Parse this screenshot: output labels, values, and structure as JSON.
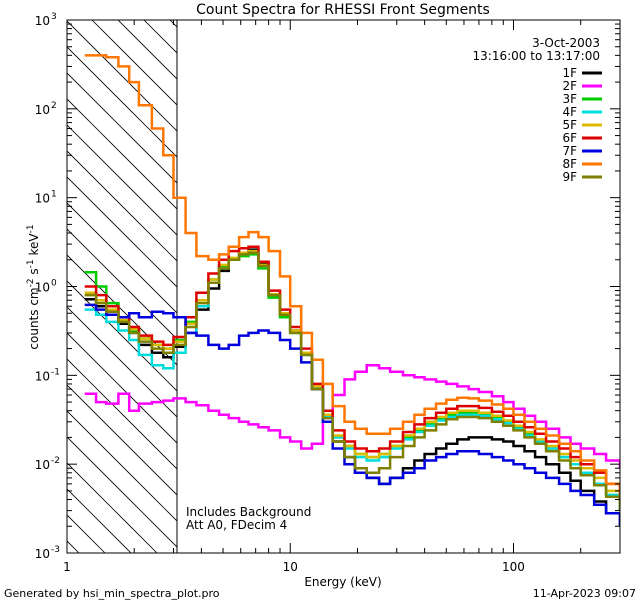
{
  "chart_data": {
    "type": "line",
    "title": "Count Spectra for RHESSI Front Segments",
    "xlabel": "Energy (keV)",
    "ylabel_parts": [
      "counts cm",
      "-2",
      " s",
      "-1",
      " keV",
      "-1"
    ],
    "x_scale": "log",
    "y_scale": "log",
    "xlim": [
      1,
      300
    ],
    "ylim": [
      0.001,
      1000
    ],
    "x_ticks": [
      {
        "value": 1,
        "label": "1"
      },
      {
        "value": 10,
        "label": "10"
      },
      {
        "value": 100,
        "label": "100"
      }
    ],
    "y_ticks": [
      {
        "value": 0.001,
        "base": "10",
        "exp": "-3"
      },
      {
        "value": 0.01,
        "base": "10",
        "exp": "-2"
      },
      {
        "value": 0.1,
        "base": "10",
        "exp": "-1"
      },
      {
        "value": 1,
        "base": "10",
        "exp": "0"
      },
      {
        "value": 10,
        "base": "10",
        "exp": "1"
      },
      {
        "value": 100,
        "base": "10",
        "exp": "2"
      },
      {
        "value": 1000,
        "base": "10",
        "exp": "3"
      }
    ],
    "hatched_region": {
      "x_from": 1,
      "x_to": 3
    },
    "date": "3-Oct-2003",
    "time_range": "13:16:00 to 13:17:00",
    "annotations": [
      "Includes Background",
      "Att A0, FDecim 4"
    ],
    "series": [
      {
        "name": "1F",
        "color": "#000000",
        "x": [
          1.2,
          1.35,
          1.5,
          1.7,
          1.9,
          2.1,
          2.4,
          2.7,
          3.0,
          3.4,
          3.8,
          4.3,
          4.8,
          5.3,
          5.9,
          6.5,
          7.2,
          8.0,
          9.0,
          10.0,
          11.2,
          12.5,
          14.0,
          15.5,
          17.5,
          19.5,
          22.0,
          25.0,
          28.0,
          32.0,
          36.0,
          40.0,
          45.0,
          50.0,
          56.0,
          63.0,
          70.0,
          80.0,
          90.0,
          100.0,
          112.0,
          125.0,
          140.0,
          160.0,
          180.0,
          200.0,
          230.0,
          260.0,
          300.0
        ],
        "y": [
          0.72,
          0.6,
          0.48,
          0.38,
          0.3,
          0.22,
          0.18,
          0.16,
          0.21,
          0.3,
          0.55,
          0.95,
          1.5,
          2.0,
          2.4,
          2.6,
          1.8,
          0.8,
          0.5,
          0.32,
          0.18,
          0.07,
          0.035,
          0.018,
          0.012,
          0.008,
          0.007,
          0.006,
          0.007,
          0.009,
          0.011,
          0.013,
          0.015,
          0.017,
          0.019,
          0.02,
          0.02,
          0.019,
          0.018,
          0.016,
          0.014,
          0.012,
          0.01,
          0.008,
          0.0065,
          0.005,
          0.0038,
          0.0028,
          0.002
        ]
      },
      {
        "name": "2F",
        "color": "#ff00ff",
        "x": [
          1.2,
          1.35,
          1.5,
          1.7,
          1.9,
          2.1,
          2.4,
          2.7,
          3.0,
          3.4,
          3.8,
          4.3,
          4.8,
          5.3,
          5.9,
          6.5,
          7.2,
          8.0,
          9.0,
          10.0,
          11.2,
          12.5,
          14.0,
          15.5,
          17.5,
          19.5,
          22.0,
          25.0,
          28.0,
          32.0,
          36.0,
          40.0,
          45.0,
          50.0,
          56.0,
          63.0,
          70.0,
          80.0,
          90.0,
          100.0,
          112.0,
          125.0,
          140.0,
          160.0,
          180.0,
          200.0,
          230.0,
          260.0,
          300.0
        ],
        "y": [
          0.062,
          0.05,
          0.048,
          0.062,
          0.04,
          0.048,
          0.05,
          0.052,
          0.055,
          0.05,
          0.046,
          0.04,
          0.036,
          0.033,
          0.03,
          0.028,
          0.026,
          0.024,
          0.02,
          0.018,
          0.015,
          0.017,
          0.03,
          0.06,
          0.09,
          0.11,
          0.13,
          0.12,
          0.11,
          0.1,
          0.095,
          0.09,
          0.085,
          0.08,
          0.075,
          0.07,
          0.065,
          0.058,
          0.05,
          0.042,
          0.035,
          0.03,
          0.025,
          0.02,
          0.017,
          0.015,
          0.013,
          0.011,
          0.009
        ]
      },
      {
        "name": "3F",
        "color": "#00cc00",
        "x": [
          1.2,
          1.35,
          1.5,
          1.7,
          1.9,
          2.1,
          2.4,
          2.7,
          3.0,
          3.4,
          3.8,
          4.3,
          4.8,
          5.3,
          5.9,
          6.5,
          7.2,
          8.0,
          9.0,
          10.0,
          11.2,
          12.5,
          14.0,
          15.5,
          17.5,
          19.5,
          22.0,
          25.0,
          28.0,
          32.0,
          36.0,
          40.0,
          45.0,
          50.0,
          56.0,
          63.0,
          70.0,
          80.0,
          90.0,
          100.0,
          112.0,
          125.0,
          140.0,
          160.0,
          180.0,
          200.0,
          230.0,
          260.0,
          300.0
        ],
        "y": [
          1.45,
          1.0,
          0.65,
          0.45,
          0.32,
          0.26,
          0.22,
          0.2,
          0.25,
          0.4,
          0.7,
          1.2,
          1.7,
          2.0,
          2.2,
          2.3,
          1.6,
          0.75,
          0.45,
          0.3,
          0.17,
          0.07,
          0.03,
          0.02,
          0.016,
          0.013,
          0.012,
          0.013,
          0.016,
          0.02,
          0.024,
          0.028,
          0.032,
          0.036,
          0.038,
          0.038,
          0.036,
          0.033,
          0.03,
          0.026,
          0.022,
          0.018,
          0.015,
          0.012,
          0.01,
          0.008,
          0.006,
          0.0045,
          0.003
        ]
      },
      {
        "name": "4F",
        "color": "#00dddd",
        "x": [
          1.2,
          1.35,
          1.5,
          1.7,
          1.9,
          2.1,
          2.4,
          2.7,
          3.0,
          3.4,
          3.8,
          4.3,
          4.8,
          5.3,
          5.9,
          6.5,
          7.2,
          8.0,
          9.0,
          10.0,
          11.2,
          12.5,
          14.0,
          15.5,
          17.5,
          19.5,
          22.0,
          25.0,
          28.0,
          32.0,
          36.0,
          40.0,
          45.0,
          50.0,
          56.0,
          63.0,
          70.0,
          80.0,
          90.0,
          100.0,
          112.0,
          125.0,
          140.0,
          160.0,
          180.0,
          200.0,
          230.0,
          260.0,
          300.0
        ],
        "y": [
          0.55,
          0.48,
          0.4,
          0.32,
          0.25,
          0.17,
          0.13,
          0.12,
          0.18,
          0.3,
          0.6,
          1.1,
          1.6,
          2.0,
          2.3,
          2.4,
          1.7,
          0.8,
          0.48,
          0.3,
          0.17,
          0.07,
          0.035,
          0.02,
          0.015,
          0.012,
          0.011,
          0.012,
          0.015,
          0.019,
          0.023,
          0.027,
          0.031,
          0.034,
          0.036,
          0.036,
          0.035,
          0.032,
          0.029,
          0.025,
          0.021,
          0.018,
          0.015,
          0.012,
          0.01,
          0.008,
          0.006,
          0.0045,
          0.003
        ]
      },
      {
        "name": "5F",
        "color": "#ddbb00",
        "x": [
          1.2,
          1.35,
          1.5,
          1.7,
          1.9,
          2.1,
          2.4,
          2.7,
          3.0,
          3.4,
          3.8,
          4.3,
          4.8,
          5.3,
          5.9,
          6.5,
          7.2,
          8.0,
          9.0,
          10.0,
          11.2,
          12.5,
          14.0,
          15.5,
          17.5,
          19.5,
          22.0,
          25.0,
          28.0,
          32.0,
          36.0,
          40.0,
          45.0,
          50.0,
          56.0,
          63.0,
          70.0,
          80.0,
          90.0,
          100.0,
          112.0,
          125.0,
          140.0,
          160.0,
          180.0,
          200.0,
          230.0,
          260.0,
          300.0
        ],
        "y": [
          0.85,
          0.7,
          0.55,
          0.42,
          0.33,
          0.26,
          0.22,
          0.2,
          0.24,
          0.38,
          0.7,
          1.2,
          1.75,
          2.1,
          2.4,
          2.5,
          1.75,
          0.82,
          0.5,
          0.32,
          0.18,
          0.075,
          0.036,
          0.021,
          0.016,
          0.013,
          0.012,
          0.013,
          0.016,
          0.021,
          0.025,
          0.03,
          0.034,
          0.038,
          0.04,
          0.04,
          0.038,
          0.035,
          0.031,
          0.027,
          0.023,
          0.019,
          0.016,
          0.013,
          0.011,
          0.009,
          0.007,
          0.005,
          0.0035
        ]
      },
      {
        "name": "6F",
        "color": "#dd0000",
        "x": [
          1.2,
          1.35,
          1.5,
          1.7,
          1.9,
          2.1,
          2.4,
          2.7,
          3.0,
          3.4,
          3.8,
          4.3,
          4.8,
          5.3,
          5.9,
          6.5,
          7.2,
          8.0,
          9.0,
          10.0,
          11.2,
          12.5,
          14.0,
          15.5,
          17.5,
          19.5,
          22.0,
          25.0,
          28.0,
          32.0,
          36.0,
          40.0,
          45.0,
          50.0,
          56.0,
          63.0,
          70.0,
          80.0,
          90.0,
          100.0,
          112.0,
          125.0,
          140.0,
          160.0,
          180.0,
          200.0,
          230.0,
          260.0,
          300.0
        ],
        "y": [
          1.0,
          0.8,
          0.6,
          0.45,
          0.35,
          0.28,
          0.24,
          0.22,
          0.27,
          0.45,
          0.85,
          1.4,
          2.0,
          2.5,
          2.7,
          2.8,
          1.9,
          0.9,
          0.55,
          0.35,
          0.2,
          0.08,
          0.04,
          0.024,
          0.018,
          0.015,
          0.014,
          0.015,
          0.018,
          0.023,
          0.028,
          0.033,
          0.038,
          0.042,
          0.045,
          0.045,
          0.043,
          0.039,
          0.035,
          0.03,
          0.026,
          0.022,
          0.018,
          0.015,
          0.012,
          0.01,
          0.008,
          0.006,
          0.004
        ]
      },
      {
        "name": "7F",
        "color": "#0000dd",
        "x": [
          1.2,
          1.35,
          1.5,
          1.7,
          1.9,
          2.1,
          2.4,
          2.7,
          3.0,
          3.4,
          3.8,
          4.3,
          4.8,
          5.3,
          5.9,
          6.5,
          7.2,
          8.0,
          9.0,
          10.0,
          11.2,
          12.5,
          14.0,
          15.5,
          17.5,
          19.5,
          22.0,
          25.0,
          28.0,
          32.0,
          36.0,
          40.0,
          45.0,
          50.0,
          56.0,
          63.0,
          70.0,
          80.0,
          90.0,
          100.0,
          112.0,
          125.0,
          140.0,
          160.0,
          180.0,
          200.0,
          230.0,
          260.0,
          300.0
        ],
        "y": [
          0.62,
          0.55,
          0.48,
          0.45,
          0.5,
          0.45,
          0.52,
          0.5,
          0.45,
          0.3,
          0.28,
          0.22,
          0.2,
          0.22,
          0.28,
          0.3,
          0.32,
          0.3,
          0.25,
          0.2,
          0.14,
          0.07,
          0.03,
          0.015,
          0.01,
          0.008,
          0.007,
          0.006,
          0.007,
          0.008,
          0.009,
          0.011,
          0.012,
          0.013,
          0.014,
          0.014,
          0.013,
          0.012,
          0.011,
          0.01,
          0.009,
          0.008,
          0.007,
          0.006,
          0.005,
          0.0045,
          0.0035,
          0.0028,
          0.002
        ]
      },
      {
        "name": "8F",
        "color": "#ff7700",
        "x": [
          1.2,
          1.35,
          1.5,
          1.7,
          1.9,
          2.1,
          2.4,
          2.7,
          3.0,
          3.4,
          3.8,
          4.3,
          4.8,
          5.3,
          5.9,
          6.5,
          7.2,
          8.0,
          9.0,
          10.0,
          11.2,
          12.5,
          14.0,
          15.5,
          17.5,
          19.5,
          22.0,
          25.0,
          28.0,
          32.0,
          36.0,
          40.0,
          45.0,
          50.0,
          56.0,
          63.0,
          70.0,
          80.0,
          90.0,
          100.0,
          112.0,
          125.0,
          140.0,
          160.0,
          180.0,
          200.0,
          230.0,
          260.0,
          300.0
        ],
        "y": [
          400,
          400,
          380,
          300,
          200,
          110,
          60,
          30,
          10,
          4.0,
          2.2,
          2.0,
          2.3,
          2.8,
          3.6,
          4.1,
          3.6,
          2.5,
          1.3,
          0.6,
          0.3,
          0.15,
          0.08,
          0.045,
          0.03,
          0.025,
          0.022,
          0.022,
          0.025,
          0.03,
          0.036,
          0.042,
          0.048,
          0.053,
          0.056,
          0.055,
          0.052,
          0.047,
          0.042,
          0.036,
          0.03,
          0.025,
          0.021,
          0.017,
          0.014,
          0.011,
          0.0085,
          0.006,
          0.0042
        ]
      },
      {
        "name": "9F",
        "color": "#808000",
        "x": [
          1.2,
          1.35,
          1.5,
          1.7,
          1.9,
          2.1,
          2.4,
          2.7,
          3.0,
          3.4,
          3.8,
          4.3,
          4.8,
          5.3,
          5.9,
          6.5,
          7.2,
          8.0,
          9.0,
          10.0,
          11.2,
          12.5,
          14.0,
          15.5,
          17.5,
          19.5,
          22.0,
          25.0,
          28.0,
          32.0,
          36.0,
          40.0,
          45.0,
          50.0,
          56.0,
          63.0,
          70.0,
          80.0,
          90.0,
          100.0,
          112.0,
          125.0,
          140.0,
          160.0,
          180.0,
          200.0,
          230.0,
          260.0,
          300.0
        ],
        "y": [
          0.8,
          0.65,
          0.52,
          0.4,
          0.3,
          0.24,
          0.2,
          0.18,
          0.22,
          0.35,
          0.65,
          1.1,
          1.6,
          2.0,
          2.3,
          2.4,
          1.7,
          0.8,
          0.48,
          0.3,
          0.17,
          0.07,
          0.033,
          0.018,
          0.012,
          0.009,
          0.008,
          0.009,
          0.012,
          0.016,
          0.02,
          0.024,
          0.028,
          0.032,
          0.034,
          0.034,
          0.033,
          0.03,
          0.027,
          0.024,
          0.02,
          0.017,
          0.014,
          0.011,
          0.009,
          0.0075,
          0.0058,
          0.0043,
          0.003
        ]
      }
    ]
  },
  "footer": {
    "generated_by": "Generated by hsi_min_spectra_plot.pro",
    "timestamp": "11-Apr-2023 09:07"
  }
}
